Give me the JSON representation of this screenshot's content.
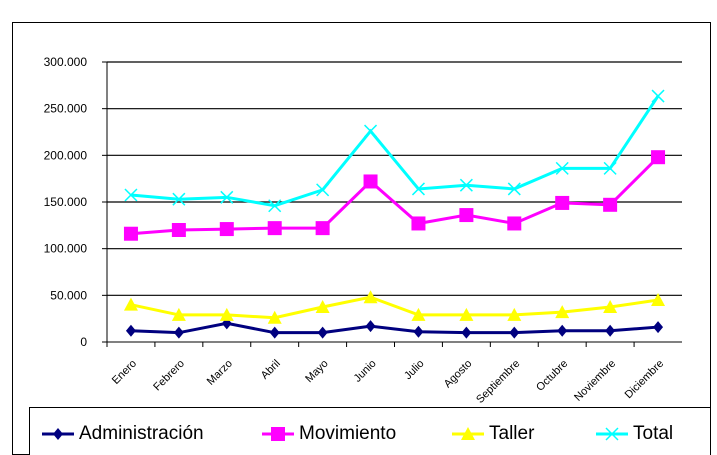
{
  "chart_data": {
    "type": "line",
    "categories": [
      "Enero",
      "Febrero",
      "Marzo",
      "Abril",
      "Mayo",
      "Junio",
      "Julio",
      "Agosto",
      "Septiembre",
      "Octubre",
      "Noviembre",
      "Diciembre"
    ],
    "series": [
      {
        "name": "Administración",
        "color": "#00007f",
        "marker": "diamond",
        "values": [
          12000,
          10000,
          20000,
          10000,
          10000,
          17000,
          11000,
          10000,
          10000,
          12000,
          12000,
          16000
        ]
      },
      {
        "name": "Movimiento",
        "color": "#ff00ff",
        "marker": "square",
        "values": [
          116000,
          120000,
          121000,
          122000,
          122000,
          172000,
          127000,
          136000,
          127000,
          149000,
          147000,
          198000
        ]
      },
      {
        "name": "Taller",
        "color": "#ffff00",
        "marker": "triangle",
        "values": [
          40000,
          29000,
          29000,
          26000,
          37500,
          48000,
          29000,
          29000,
          29000,
          32000,
          37500,
          45000
        ]
      },
      {
        "name": "Total",
        "color": "#00ffff",
        "marker": "x",
        "values": [
          157500,
          153000,
          155000,
          146000,
          163000,
          226000,
          164000,
          168000,
          164000,
          186000,
          186000,
          263500
        ]
      }
    ],
    "ylim": [
      0,
      300000
    ],
    "yticks": [
      0,
      {
        "value": 50000,
        "label": "50.000"
      },
      {
        "value": 100000,
        "label": "100.000"
      },
      {
        "value": 150000,
        "label": "150.000"
      },
      {
        "value": 200000,
        "label": "200.000"
      },
      {
        "value": 250000,
        "label": "250.000"
      },
      {
        "value": 300000,
        "label": "300.000"
      }
    ],
    "grid": true,
    "legend": "bottom"
  }
}
